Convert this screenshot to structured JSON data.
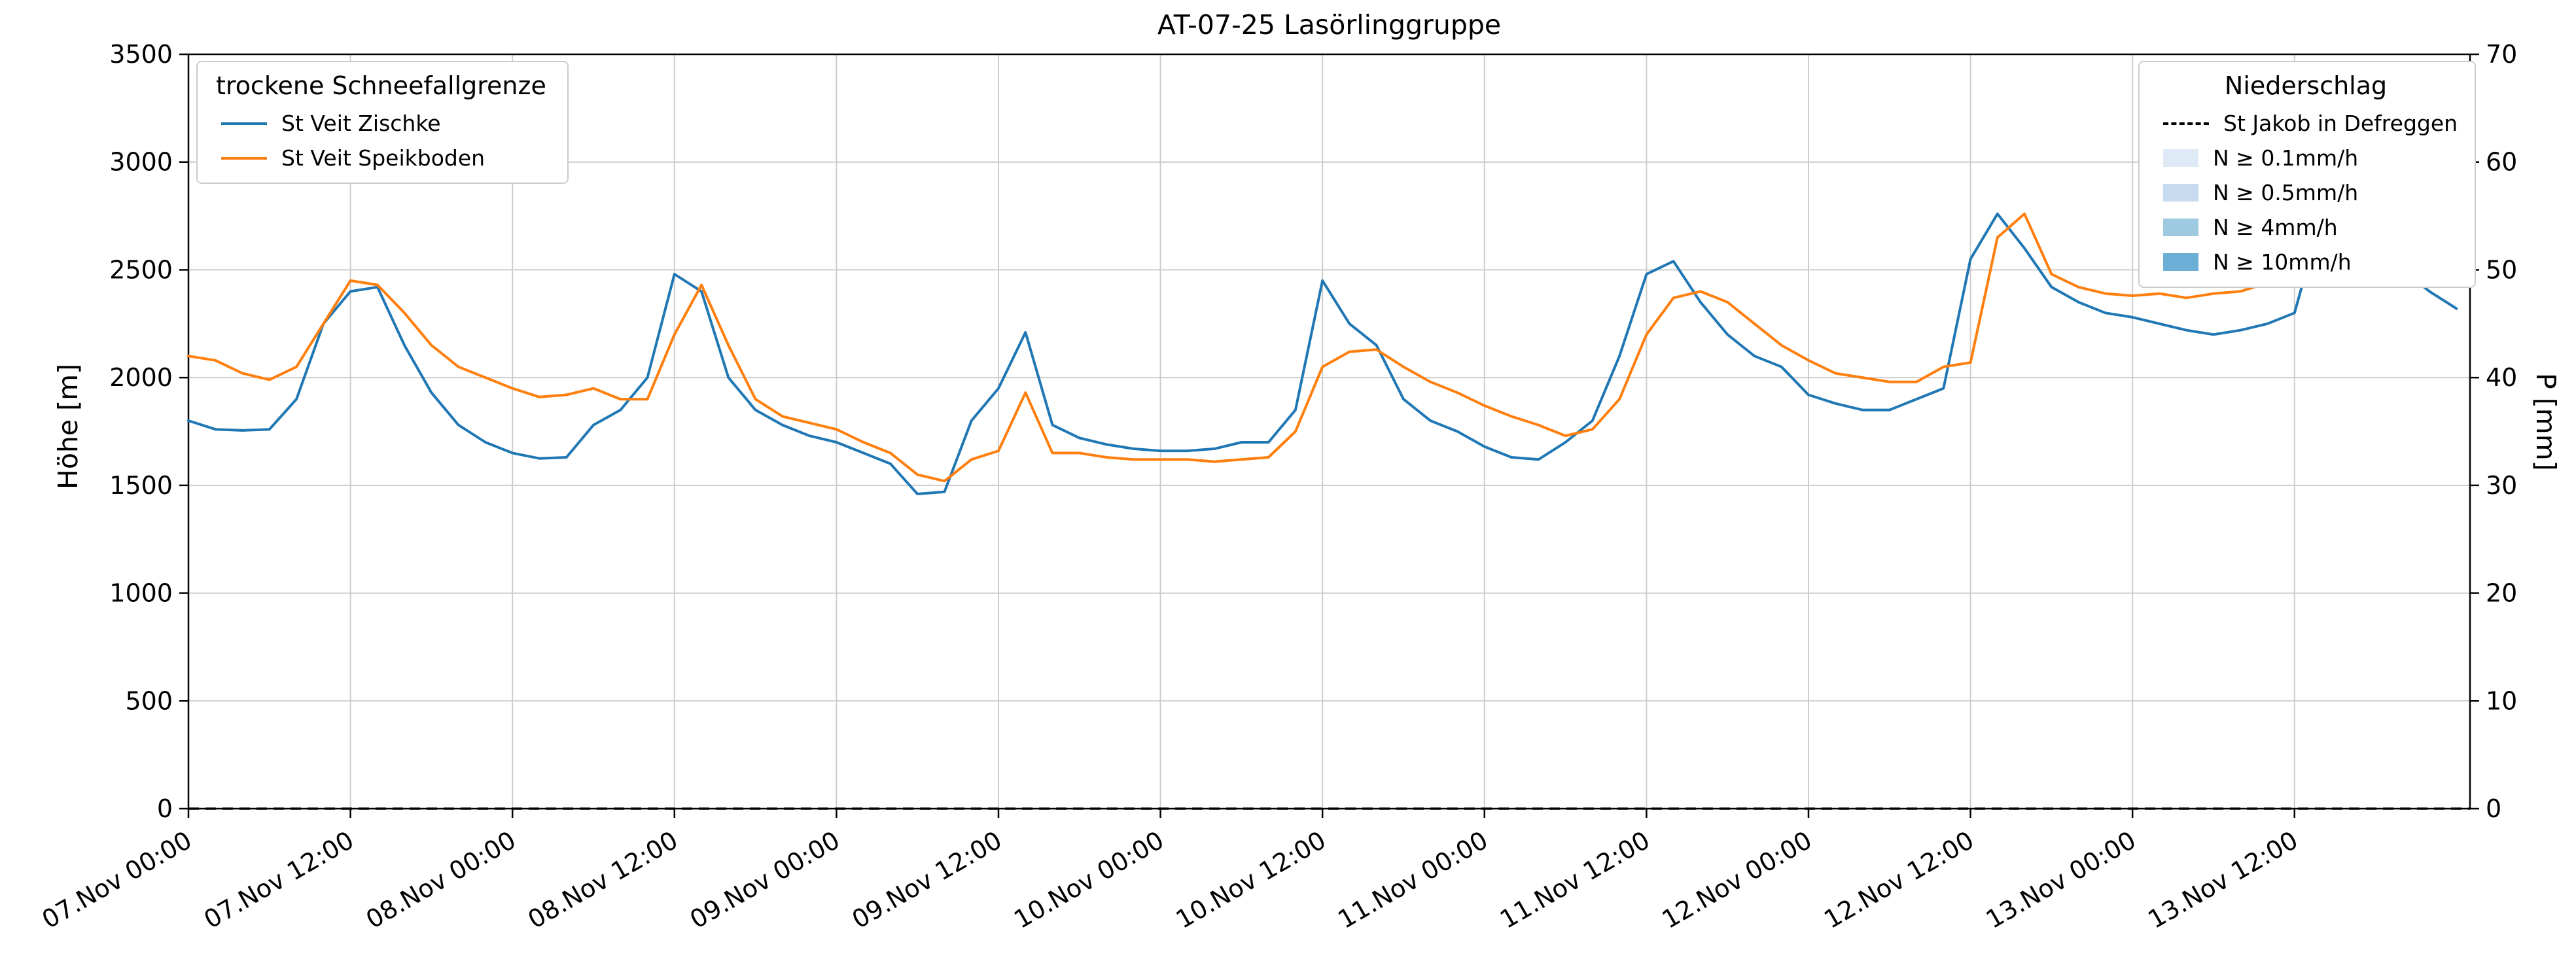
{
  "title": "AT-07-25 Lasörlinggruppe",
  "axes": {
    "y_left_label": "Höhe [m]",
    "y_right_label": "P [mm]",
    "y_left_ticks": [
      0,
      500,
      1000,
      1500,
      2000,
      2500,
      3000,
      3500
    ],
    "y_right_ticks": [
      0,
      10,
      20,
      30,
      40,
      50,
      60,
      70
    ],
    "x_tick_labels": [
      "07.Nov 00:00",
      "07.Nov 12:00",
      "08.Nov 00:00",
      "08.Nov 12:00",
      "09.Nov 00:00",
      "09.Nov 12:00",
      "10.Nov 00:00",
      "10.Nov 12:00",
      "11.Nov 00:00",
      "11.Nov 12:00",
      "12.Nov 00:00",
      "12.Nov 12:00",
      "13.Nov 00:00",
      "13.Nov 12:00"
    ]
  },
  "legend_snowline": {
    "title": "trockene Schneefallgrenze",
    "entries": [
      {
        "label": "St Veit Zischke",
        "color": "#1f77b4"
      },
      {
        "label": "St Veit Speikboden",
        "color": "#ff7f0e"
      }
    ]
  },
  "legend_precip": {
    "title": "Niederschlag",
    "line_entry": {
      "label": "St Jakob in Defreggen",
      "color": "#000000",
      "dashed": true
    },
    "patch_entries": [
      {
        "label": "N ≥ 0.1mm/h",
        "color": "#deebf7"
      },
      {
        "label": "N ≥ 0.5mm/h",
        "color": "#c6dbef"
      },
      {
        "label": "N ≥ 4mm/h",
        "color": "#9ecae1"
      },
      {
        "label": "N ≥ 10mm/h",
        "color": "#6baed6"
      }
    ]
  },
  "chart_data": {
    "type": "line",
    "title": "AT-07-25 Lasörlinggruppe",
    "xlabel": "",
    "ylabel_left": "Höhe [m]",
    "ylabel_right": "P [mm]",
    "grid": true,
    "x_unit": "hours since 07 Nov 00:00",
    "x_step": 2,
    "x_range": [
      0,
      168
    ],
    "xlim": [
      0,
      169
    ],
    "ylim_left": [
      0,
      3500
    ],
    "ylim_right": [
      0,
      70
    ],
    "x_ticks_hours": [
      0,
      12,
      24,
      36,
      48,
      60,
      72,
      84,
      96,
      108,
      120,
      132,
      144,
      156
    ],
    "series": [
      {
        "name": "St Veit Zischke",
        "axis": "left",
        "color": "#1f77b4",
        "style": "solid",
        "values": [
          1800,
          1760,
          1755,
          1760,
          1900,
          2250,
          2400,
          2420,
          2150,
          1930,
          1780,
          1700,
          1650,
          1625,
          1630,
          1780,
          1850,
          2000,
          2480,
          2400,
          2000,
          1850,
          1780,
          1730,
          1700,
          1650,
          1600,
          1460,
          1470,
          1800,
          1950,
          2210,
          1780,
          1720,
          1690,
          1670,
          1660,
          1660,
          1670,
          1700,
          1700,
          1850,
          2450,
          2250,
          2150,
          1900,
          1800,
          1750,
          1680,
          1630,
          1620,
          1700,
          1800,
          2100,
          2480,
          2540,
          2350,
          2200,
          2100,
          2050,
          1920,
          1880,
          1850,
          1850,
          1900,
          1950,
          2550,
          2760,
          2600,
          2420,
          2350,
          2300,
          2280,
          2250,
          2220,
          2200,
          2220,
          2250,
          2300,
          2750,
          2990,
          2750,
          2500,
          2400,
          2320
        ]
      },
      {
        "name": "St Veit Speikboden",
        "axis": "left",
        "color": "#ff7f0e",
        "style": "solid",
        "values": [
          2100,
          2080,
          2020,
          1990,
          2050,
          2250,
          2450,
          2430,
          2300,
          2150,
          2050,
          2000,
          1950,
          1910,
          1920,
          1950,
          1900,
          1900,
          2200,
          2430,
          2150,
          1900,
          1820,
          1790,
          1760,
          1700,
          1650,
          1550,
          1520,
          1620,
          1660,
          1930,
          1650,
          1650,
          1630,
          1620,
          1620,
          1620,
          1610,
          1620,
          1630,
          1750,
          2050,
          2120,
          2130,
          2050,
          1980,
          1930,
          1870,
          1820,
          1780,
          1730,
          1760,
          1900,
          2200,
          2370,
          2400,
          2350,
          2250,
          2150,
          2080,
          2020,
          2000,
          1980,
          1980,
          2050,
          2070,
          2650,
          2760,
          2480,
          2420,
          2390,
          2380,
          2390,
          2370,
          2390,
          2400,
          2440,
          2450,
          2700,
          2990,
          2850,
          2520,
          2460,
          2430
        ]
      },
      {
        "name": "St Jakob in Defreggen",
        "axis": "right",
        "color": "#000000",
        "style": "dashed",
        "constant_value": 0
      }
    ]
  }
}
